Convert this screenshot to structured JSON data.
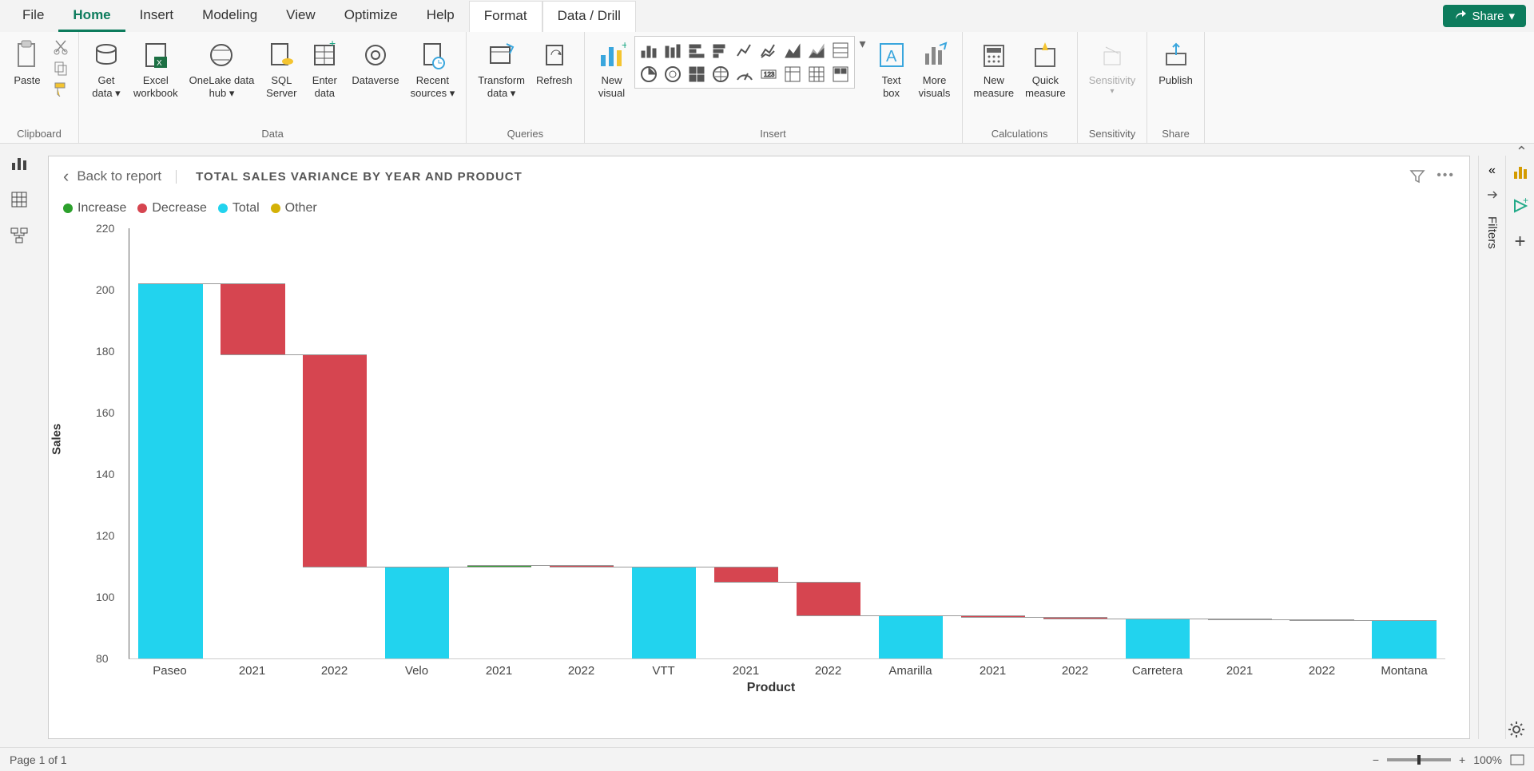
{
  "ribbon": {
    "tabs": [
      "File",
      "Home",
      "Insert",
      "Modeling",
      "View",
      "Optimize",
      "Help",
      "Format",
      "Data / Drill"
    ],
    "active_tab": "Home",
    "context_tabs": [
      "Format",
      "Data / Drill"
    ],
    "share_label": "Share"
  },
  "ribbon_groups": {
    "clipboard": {
      "label": "Clipboard",
      "paste": "Paste"
    },
    "data": {
      "label": "Data",
      "items": [
        "Get\ndata",
        "Excel\nworkbook",
        "OneLake data\nhub",
        "SQL\nServer",
        "Enter\ndata",
        "Dataverse",
        "Recent\nsources"
      ]
    },
    "queries": {
      "label": "Queries",
      "items": [
        "Transform\ndata",
        "Refresh"
      ]
    },
    "insert": {
      "label": "Insert",
      "new_visual": "New\nvisual",
      "text_box": "Text\nbox",
      "more_visuals": "More\nvisuals"
    },
    "calculations": {
      "label": "Calculations",
      "new_measure": "New\nmeasure",
      "quick_measure": "Quick\nmeasure"
    },
    "sensitivity": {
      "label": "Sensitivity",
      "item": "Sensitivity"
    },
    "share": {
      "label": "Share",
      "publish": "Publish"
    }
  },
  "chart": {
    "back_label": "Back to report",
    "title": "TOTAL SALES VARIANCE BY YEAR AND PRODUCT",
    "legend": [
      {
        "label": "Increase",
        "color": "#2ca02c"
      },
      {
        "label": "Decrease",
        "color": "#d64550"
      },
      {
        "label": "Total",
        "color": "#22d3ee"
      },
      {
        "label": "Other",
        "color": "#d4b106"
      }
    ],
    "y_axis_label": "Sales",
    "x_axis_label": "Product",
    "y_min": 80,
    "y_max": 220,
    "y_ticks": [
      80,
      100,
      120,
      140,
      160,
      180,
      200,
      220
    ],
    "bars": [
      {
        "label": "Paseo",
        "type": "total",
        "from": 80,
        "to": 202,
        "color": "#22d3ee"
      },
      {
        "label": "2021",
        "type": "decrease",
        "from": 202,
        "to": 179,
        "color": "#d64550"
      },
      {
        "label": "2022",
        "type": "decrease",
        "from": 179,
        "to": 110,
        "color": "#d64550"
      },
      {
        "label": "Velo",
        "type": "total",
        "from": 80,
        "to": 110,
        "color": "#22d3ee"
      },
      {
        "label": "2021",
        "type": "increase",
        "from": 110,
        "to": 110.5,
        "color": "#2ca02c"
      },
      {
        "label": "2022",
        "type": "decrease",
        "from": 110.5,
        "to": 110,
        "color": "#d64550"
      },
      {
        "label": "VTT",
        "type": "total",
        "from": 80,
        "to": 110,
        "color": "#22d3ee"
      },
      {
        "label": "2021",
        "type": "decrease",
        "from": 110,
        "to": 105,
        "color": "#d64550"
      },
      {
        "label": "2022",
        "type": "decrease",
        "from": 105,
        "to": 94,
        "color": "#d64550"
      },
      {
        "label": "Amarilla",
        "type": "total",
        "from": 80,
        "to": 94,
        "color": "#22d3ee"
      },
      {
        "label": "2021",
        "type": "decrease",
        "from": 94,
        "to": 93.5,
        "color": "#d64550"
      },
      {
        "label": "2022",
        "type": "decrease",
        "from": 93.5,
        "to": 93,
        "color": "#d64550"
      },
      {
        "label": "Carretera",
        "type": "total",
        "from": 80,
        "to": 93,
        "color": "#22d3ee"
      },
      {
        "label": "2021",
        "type": "decrease",
        "from": 93,
        "to": 92.8,
        "color": "#d64550"
      },
      {
        "label": "2022",
        "type": "decrease",
        "from": 92.8,
        "to": 92.5,
        "color": "#d64550"
      },
      {
        "label": "Montana",
        "type": "total",
        "from": 80,
        "to": 92.5,
        "color": "#22d3ee"
      }
    ],
    "grid_color": "#eeeeee",
    "background_color": "#ffffff",
    "connector_color": "#999999"
  },
  "filters_label": "Filters",
  "status": {
    "page": "Page 1 of 1",
    "zoom": "100%"
  }
}
